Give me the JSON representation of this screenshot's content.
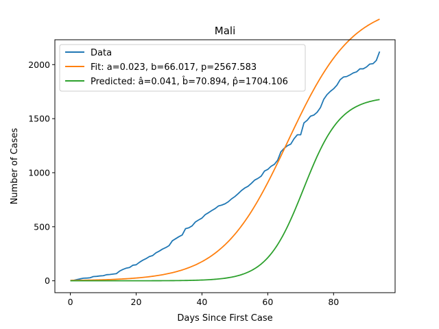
{
  "chart_data": {
    "type": "line",
    "title": "Mali",
    "xlabel": "Days Since First Case",
    "ylabel": "Number of Cases",
    "xlim": [
      -4.7,
      98.7
    ],
    "ylim": [
      -110,
      2230
    ],
    "xticks": [
      0,
      20,
      40,
      60,
      80
    ],
    "yticks": [
      0,
      500,
      1000,
      1500,
      2000
    ],
    "grid": false,
    "legend_position": "top-left",
    "series": [
      {
        "name": "Data",
        "color": "#1f77b4",
        "x": [
          0,
          1,
          2,
          3,
          4,
          5,
          6,
          7,
          8,
          9,
          10,
          11,
          12,
          13,
          14,
          15,
          16,
          17,
          18,
          19,
          20,
          21,
          22,
          23,
          24,
          25,
          26,
          27,
          28,
          29,
          30,
          31,
          32,
          33,
          34,
          35,
          36,
          37,
          38,
          39,
          40,
          41,
          42,
          43,
          44,
          45,
          46,
          47,
          48,
          49,
          50,
          51,
          52,
          53,
          54,
          55,
          56,
          57,
          58,
          59,
          60,
          61,
          62,
          63,
          64,
          65,
          66,
          67,
          68,
          69,
          70,
          71,
          72,
          73,
          74,
          75,
          76,
          77,
          78,
          79,
          80,
          81,
          82,
          83,
          84,
          85,
          86,
          87,
          88,
          89,
          90,
          91,
          92,
          93,
          94
        ],
        "y": [
          2,
          4,
          11,
          18,
          24,
          25,
          28,
          39,
          41,
          45,
          47,
          56,
          58,
          62,
          66,
          90,
          105,
          117,
          123,
          144,
          148,
          171,
          190,
          205,
          224,
          233,
          258,
          274,
          293,
          307,
          325,
          370,
          389,
          408,
          424,
          482,
          490,
          508,
          544,
          563,
          580,
          612,
          630,
          650,
          668,
          692,
          700,
          712,
          731,
          758,
          779,
          806,
          835,
          858,
          874,
          901,
          931,
          947,
          968,
          1015,
          1030,
          1059,
          1077,
          1115,
          1194,
          1226,
          1250,
          1265,
          1315,
          1351,
          1351,
          1461,
          1485,
          1523,
          1533,
          1559,
          1602,
          1678,
          1722,
          1752,
          1776,
          1809,
          1860,
          1885,
          1890,
          1905,
          1923,
          1933,
          1961,
          1961,
          1978,
          2005,
          2009,
          2039,
          2121
        ]
      },
      {
        "name": "Fit: a=0.023, b=66.017, p=2567.583",
        "color": "#ff7f0e",
        "model": "logistic",
        "params": {
          "a": 0.023,
          "b": 66.017,
          "p": 2567.583
        },
        "x_range": [
          0,
          94
        ]
      },
      {
        "name": "Predicted: â=0.041, b̂=70.894, p̂=1704.106",
        "color": "#2ca02c",
        "model": "logistic",
        "params": {
          "a": 0.041,
          "b": 70.894,
          "p": 1704.106
        },
        "x_range": [
          0,
          94
        ]
      }
    ]
  }
}
